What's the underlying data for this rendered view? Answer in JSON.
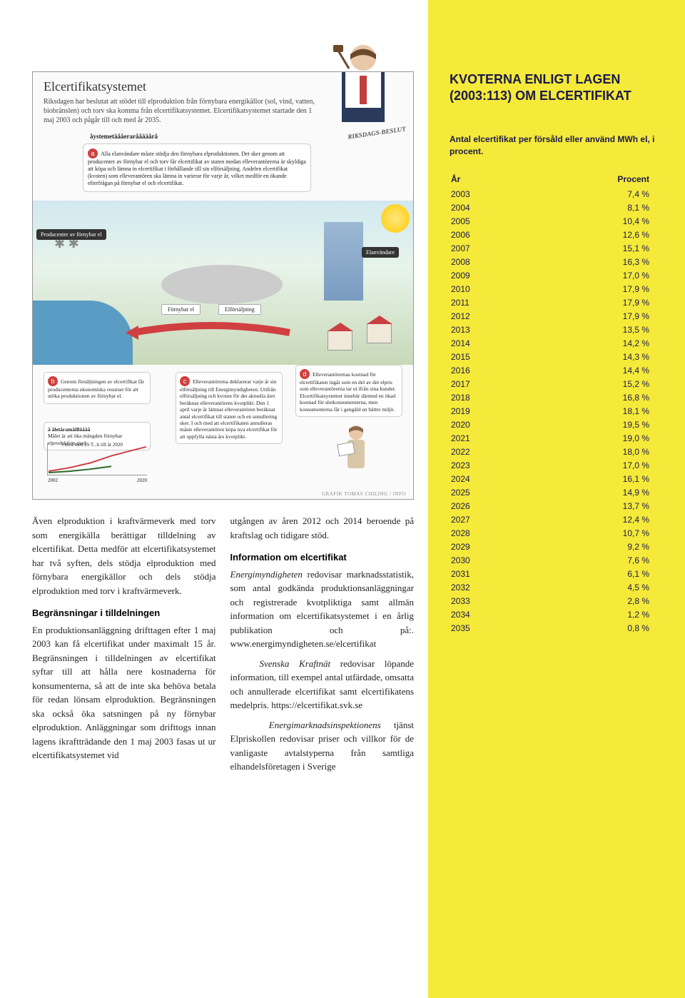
{
  "infographic": {
    "title": "Elcertifikatsystemet",
    "intro": "Riksdagen har beslutat att stödet till elproduktion från förnybara energikällor (sol, vind, vatten, biobränslen) och torv ska komma från elcertifikatsystemet. Elcertifikatsystemet startade den 1 maj 2003 och pågår till och med år 2035.",
    "subhead": "åystemetäååerarååääårå",
    "riksdag": "RIKSDAGS-BESLUT",
    "bubble_a": "Alla elanvändare måste stödja den förnybara elproduktionen. Det sker genom att producenter av förnybar el och torv får elcertifikat av staten medan elleverantörerna är skyldiga att köpa och lämna in elcertifikat i förhållande till sin elförsäljning. Andelen elcertifikat (kvoten) som elleverantören ska lämna in varierar för varje år, vilket medför en ökande efterfrågan på förnybar el och elcertifikat.",
    "label_prod": "Producenter av förnybar el",
    "label_elan": "Elanvändare",
    "label_forny": "Förnybar el",
    "label_elfor": "Elförsäljning",
    "bubble_b": "Genom försäljningen av elcertifikat får producenterna ekonomiska resurser för att utöka produktionen av förnybar el.",
    "bubble_b_title": "å åletäramäilläååå",
    "bubble_b_sub": "Målet är att öka mängden förnybar elproduktion med...",
    "mini_chart_note": "i nivå med 25 T...h  till år 2020",
    "bubble_c": "Elleverantörerna deklarerar varje år sin elförsäljning till Energimyndigheten. Utifrån elförsäljning och kvoten för det aktuella året beräknas elleverantörens kvotplikt. Den 1 april varje år lämnar elleverantören beräknat antal elcertifikat till staten och en annullering sker. I och med att elcertifikaten annulleras måste elleverantören köpa nya elcertifikat för att uppfylla nästa års kvotplikt.",
    "bubble_d": "Elleverantörernas kostnad för elcertifikaten ingår som en del av det elpris som elleverantörerna tar ut ifrån sina kunder. Elcertifikatsystemet innebär därmed en ökad kostnad för slutkonsumenterna, men konsumenterna får i gengäld en bättre miljö.",
    "credit": "GRAFIK   TOMAS CHILING / INFO"
  },
  "article": {
    "col1_p1": "Även elproduktion i kraftvärmeverk med torv som energikälla berättigar tilldelning av elcertifikat. Detta medför att elcertifikatsystemet har två syften, dels stödja elproduktion med förnybara energikällor och dels stödja elproduktion med torv i kraftvärmeverk.",
    "col1_h1": "Begränsningar i tilldelningen",
    "col1_p2": "En produktionsanläggning drifttagen efter 1 maj 2003 kan få elcertifikat under maximalt 15 år. Begränsningen i tilldelningen av elcertifikat syftar till att hålla nere kostnaderna för konsumenterna, så att de inte ska behöva betala för redan lönsam elproduktion. Begränsningen ska också öka satsningen på ny förnybar elproduktion. Anläggningar som drifttogs innan lagens ikraftträdande den 1 maj 2003 fasas ut ur elcertifikatsystemet vid",
    "col2_p1": "utgången av åren 2012 och 2014 beroende på kraftslag och tidigare stöd.",
    "col2_h1": "Information om elcertifikat",
    "col2_p2_a": "Energimyndigheten",
    "col2_p2_b": " redovisar marknadsstatistik, som antal godkända produktionsanläggningar och registrerade kvotpliktiga samt allmän information om elcertifikatsystemet i en årlig publikation och på:. www.energimyndigheten.se/elcertifikat",
    "col2_p3_a": "Svenska Kraftnät",
    "col2_p3_b": " redovisar löpande information, till exempel antal utfärdade, omsatta och annullerade elcertifikat samt elcertifikatens medelpris. https://elcertifikat.svk.se",
    "col2_p4_a": "Energimarknadsinspektionens",
    "col2_p4_b": " tjänst Elpriskollen redovisar priser och villkor för de vanligaste avtalstyperna från samtliga elhandelsföretagen i Sverige"
  },
  "sidebar": {
    "title": "KVOTERNA ENLIGT LAGEN (2003:113) OM ELCERTIFIKAT",
    "subhead": "Antal elcertifikat per försåld eller använd MWh el, i procent.",
    "th_year": "År",
    "th_pct": "Procent",
    "rows": [
      {
        "y": "2003",
        "p": "7,4 %"
      },
      {
        "y": "2004",
        "p": "8,1 %"
      },
      {
        "y": "2005",
        "p": "10,4 %"
      },
      {
        "y": "2006",
        "p": "12,6 %"
      },
      {
        "y": "2007",
        "p": "15,1 %"
      },
      {
        "y": "2008",
        "p": "16,3 %"
      },
      {
        "y": "2009",
        "p": "17,0 %"
      },
      {
        "y": "2010",
        "p": "17,9 %"
      },
      {
        "y": "2011",
        "p": "17,9 %"
      },
      {
        "y": "2012",
        "p": "17,9 %"
      },
      {
        "y": "2013",
        "p": "13,5 %"
      },
      {
        "y": "2014",
        "p": "14,2 %"
      },
      {
        "y": "2015",
        "p": "14,3 %"
      },
      {
        "y": "2016",
        "p": "14,4 %"
      },
      {
        "y": "2017",
        "p": "15,2 %"
      },
      {
        "y": "2018",
        "p": "16,8 %"
      },
      {
        "y": "2019",
        "p": "18,1 %"
      },
      {
        "y": "2020",
        "p": "19,5 %"
      },
      {
        "y": "2021",
        "p": "19,0 %"
      },
      {
        "y": "2022",
        "p": "18,0 %"
      },
      {
        "y": "2023",
        "p": "17,0 %"
      },
      {
        "y": "2024",
        "p": "16,1 %"
      },
      {
        "y": "2025",
        "p": "14,9 %"
      },
      {
        "y": "2026",
        "p": "13,7 %"
      },
      {
        "y": "2027",
        "p": "12,4 %"
      },
      {
        "y": "2028",
        "p": "10,7 %"
      },
      {
        "y": "2029",
        "p": "9,2 %"
      },
      {
        "y": "2030",
        "p": "7,6 %"
      },
      {
        "y": "2031",
        "p": "6,1 %"
      },
      {
        "y": "2032",
        "p": "4,5 %"
      },
      {
        "y": "2033",
        "p": "2,8 %"
      },
      {
        "y": "2034",
        "p": "1,2 %"
      },
      {
        "y": "2035",
        "p": "0,8 %"
      }
    ]
  },
  "colors": {
    "sidebar_bg": "#f5e93a",
    "heading": "#1a1a4a",
    "badge": "#d04040"
  }
}
